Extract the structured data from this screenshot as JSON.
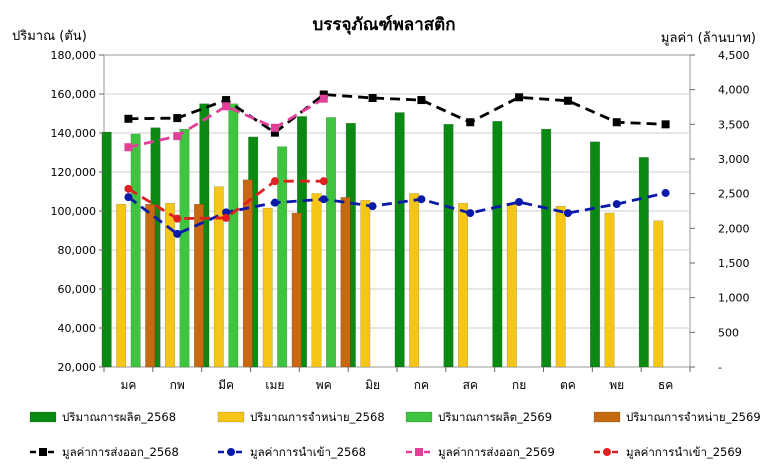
{
  "chart_data": {
    "type": "bar",
    "title": "บรรจุภัณฑ์พลาสติก",
    "ylabel": "ปริมาณ (ตัน)",
    "y2label": "มูลค่า (ล้านบาท)",
    "ylim": [
      20000,
      180000
    ],
    "y2lim": [
      0,
      4500
    ],
    "yticks": [
      "20,000",
      "40,000",
      "60,000",
      "80,000",
      "100,000",
      "120,000",
      "140,000",
      "160,000",
      "180,000"
    ],
    "y2ticks": [
      "-",
      "500",
      "1,000",
      "1,500",
      "2,000",
      "2,500",
      "3,000",
      "3,500",
      "4,000",
      "4,500"
    ],
    "categories": [
      "มค",
      "กพ",
      "มีค",
      "เมย",
      "พค",
      "มิย",
      "กค",
      "สค",
      "กย",
      "ตค",
      "พย",
      "ธค"
    ],
    "grid": true,
    "legend_position": "bottom",
    "bar_series": [
      {
        "name": "ปริมาณการผลิต_2568",
        "color": "#0a8a12",
        "values": [
          140500,
          142700,
          155000,
          138000,
          148500,
          145000,
          150500,
          144500,
          146000,
          142000,
          135500,
          127500
        ]
      },
      {
        "name": "ปริมาณการจำหน่าย_2568",
        "color": "#f5c518",
        "values": [
          103500,
          104000,
          112500,
          101500,
          109000,
          105500,
          109000,
          104000,
          103500,
          102500,
          99000,
          95000
        ]
      },
      {
        "name": "ปริมาณการผลิต_2569",
        "color": "#3ec43e",
        "values": [
          139500,
          142000,
          155000,
          133000,
          148000,
          null,
          null,
          null,
          null,
          null,
          null,
          null
        ]
      },
      {
        "name": "ปริมาณการจำหน่าย_2569",
        "color": "#c66a12",
        "values": [
          103500,
          103500,
          116000,
          99000,
          107000,
          null,
          null,
          null,
          null,
          null,
          null,
          null
        ]
      }
    ],
    "line_series": [
      {
        "name": "มูลค่าการส่งออก_2568",
        "color": "#000000",
        "marker": "square",
        "values": [
          3580,
          3590,
          3850,
          3380,
          3930,
          3880,
          3850,
          3530,
          3890,
          3840,
          3530,
          3500
        ]
      },
      {
        "name": "มูลค่าการนำเข้า_2568",
        "color": "#0a1aa8",
        "marker": "circle",
        "values": [
          2450,
          1920,
          2230,
          2370,
          2420,
          2320,
          2420,
          2220,
          2380,
          2220,
          2350,
          2510
        ]
      },
      {
        "name": "มูลค่าการส่งออก_2569",
        "color": "#e0409a",
        "marker": "square",
        "values": [
          3170,
          3330,
          3760,
          3450,
          3870,
          null,
          null,
          null,
          null,
          null,
          null,
          null
        ]
      },
      {
        "name": "มูลค่าการนำเข้า_2569",
        "color": "#e02020",
        "marker": "circle",
        "values": [
          2570,
          2140,
          2150,
          2680,
          2680,
          null,
          null,
          null,
          null,
          null,
          null,
          null
        ]
      }
    ]
  }
}
